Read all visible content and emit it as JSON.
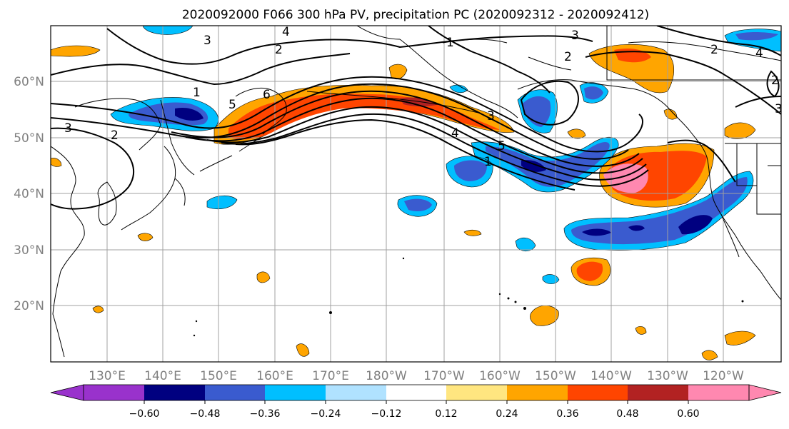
{
  "title": "2020092000 F066 300 hPa PV, precipitation PC (2020092312 - 2020092412)",
  "map": {
    "lon_labels": [
      "130°E",
      "140°E",
      "150°E",
      "160°E",
      "170°E",
      "180°W",
      "170°W",
      "160°W",
      "150°W",
      "140°W",
      "130°W",
      "120°W"
    ],
    "lat_labels": [
      "60°N",
      "50°N",
      "40°N",
      "30°N",
      "20°N"
    ],
    "contour_labels": [
      "3",
      "2",
      "1",
      "2",
      "3",
      "4",
      "5",
      "6",
      "1",
      "2",
      "3",
      "4",
      "1",
      "2",
      "3",
      "4",
      "5",
      "2",
      "3"
    ],
    "grid": true
  },
  "colorbar": {
    "tick_labels": [
      "−0.60",
      "−0.48",
      "−0.36",
      "−0.24",
      "−0.12",
      "0.12",
      "0.24",
      "0.36",
      "0.48",
      "0.60"
    ],
    "colors": [
      "#9932CC",
      "#000080",
      "#3A5BCF",
      "#00BFFF",
      "#B0E2FF",
      "#FFFFFF",
      "#FFE680",
      "#FFA500",
      "#FF4500",
      "#B22222",
      "#FF88B0"
    ]
  },
  "colors": {
    "ocean": "#FFFFFF",
    "grid": "#A0A0A0",
    "contour": "#000000",
    "axis_label": "#808080"
  }
}
